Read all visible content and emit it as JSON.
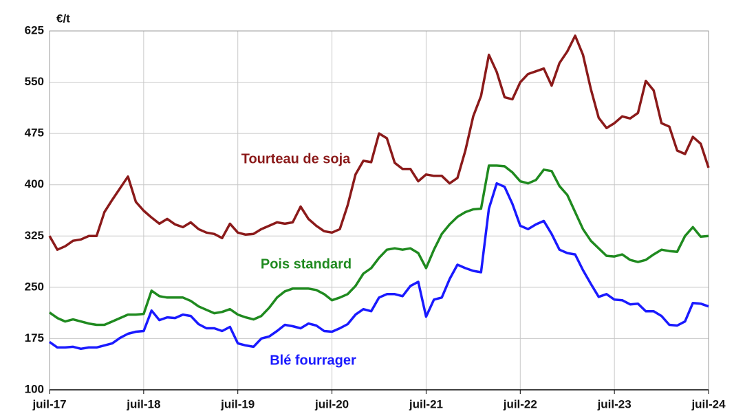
{
  "chart_data": {
    "type": "line",
    "y_unit": "€/t",
    "categories": [
      "juil-17",
      null,
      null,
      null,
      null,
      null,
      null,
      null,
      null,
      null,
      null,
      null,
      "juil-18",
      null,
      null,
      null,
      null,
      null,
      null,
      null,
      null,
      null,
      null,
      null,
      "juil-19",
      null,
      null,
      null,
      null,
      null,
      null,
      null,
      null,
      null,
      null,
      null,
      "juil-20",
      null,
      null,
      null,
      null,
      null,
      null,
      null,
      null,
      null,
      null,
      null,
      "juil-21",
      null,
      null,
      null,
      null,
      null,
      null,
      null,
      null,
      null,
      null,
      null,
      "juil-22",
      null,
      null,
      null,
      null,
      null,
      null,
      null,
      null,
      null,
      null,
      null,
      "juil-23",
      null,
      null,
      null,
      null,
      null,
      null,
      null,
      null,
      null,
      null,
      null,
      "juil-24"
    ],
    "ylim": [
      100,
      625
    ],
    "yticks": [
      100,
      175,
      250,
      325,
      400,
      475,
      550,
      625
    ],
    "grid": true,
    "series": [
      {
        "name": "Tourteau de soja",
        "color": "#8b1a1a",
        "values": [
          325,
          305,
          310,
          318,
          320,
          325,
          325,
          360,
          378,
          395,
          412,
          375,
          362,
          352,
          343,
          350,
          342,
          338,
          345,
          335,
          330,
          328,
          322,
          343,
          330,
          327,
          328,
          335,
          340,
          345,
          343,
          345,
          368,
          350,
          340,
          332,
          330,
          335,
          370,
          415,
          435,
          433,
          475,
          468,
          432,
          423,
          423,
          405,
          415,
          413,
          413,
          402,
          410,
          450,
          500,
          530,
          590,
          565,
          528,
          525,
          550,
          562,
          566,
          570,
          545,
          578,
          595,
          618,
          590,
          540,
          498,
          483,
          490,
          500,
          497,
          505,
          552,
          538,
          490,
          485,
          450,
          445,
          470,
          460,
          425
        ]
      },
      {
        "name": "Pois standard",
        "color": "#1f8a1f",
        "values": [
          213,
          205,
          200,
          203,
          200,
          197,
          195,
          195,
          200,
          205,
          210,
          210,
          211,
          245,
          237,
          235,
          235,
          235,
          230,
          222,
          217,
          212,
          214,
          218,
          210,
          206,
          203,
          208,
          220,
          235,
          244,
          248,
          248,
          248,
          246,
          240,
          231,
          235,
          240,
          252,
          270,
          278,
          293,
          305,
          307,
          305,
          307,
          300,
          278,
          305,
          328,
          342,
          353,
          360,
          364,
          365,
          428,
          428,
          427,
          418,
          405,
          402,
          407,
          422,
          420,
          398,
          385,
          360,
          335,
          318,
          307,
          296,
          295,
          298,
          290,
          287,
          290,
          298,
          305,
          303,
          302,
          325,
          338,
          324,
          325
        ]
      },
      {
        "name": "Blé fourrager",
        "color": "#1a1aff",
        "values": [
          170,
          162,
          162,
          163,
          160,
          162,
          162,
          165,
          168,
          176,
          182,
          185,
          186,
          216,
          202,
          206,
          205,
          210,
          208,
          196,
          190,
          190,
          186,
          192,
          168,
          165,
          163,
          175,
          178,
          186,
          195,
          193,
          190,
          197,
          194,
          186,
          185,
          190,
          196,
          210,
          218,
          215,
          235,
          240,
          240,
          237,
          252,
          258,
          207,
          232,
          235,
          262,
          283,
          278,
          274,
          272,
          365,
          402,
          397,
          372,
          340,
          335,
          342,
          347,
          328,
          305,
          300,
          298,
          275,
          255,
          236,
          240,
          232,
          231,
          225,
          226,
          215,
          215,
          208,
          195,
          194,
          200,
          227,
          226,
          222
        ]
      }
    ]
  }
}
